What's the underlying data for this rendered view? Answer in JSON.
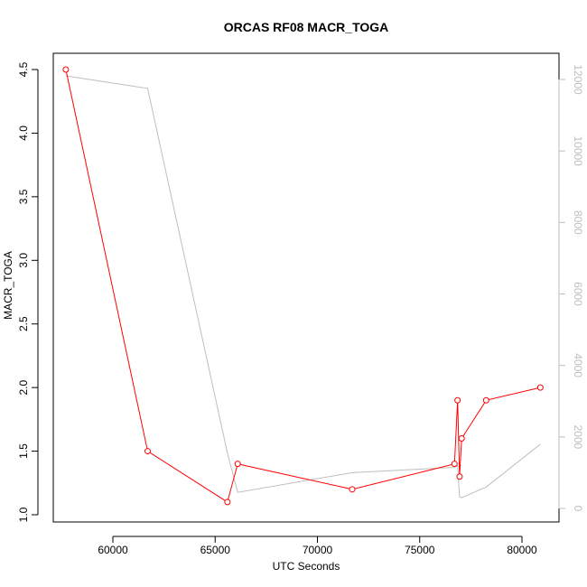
{
  "chart_data": {
    "type": "line",
    "title": "ORCAS RF08 MACR_TOGA",
    "xlabel": "UTC Seconds",
    "ylabel": "MACR_TOGA",
    "xlim": [
      56800,
      82000
    ],
    "ylim": [
      1.0,
      4.5
    ],
    "xticks": [
      60000,
      65000,
      70000,
      75000,
      80000
    ],
    "yticks": [
      "1.0",
      "1.5",
      "2.0",
      "2.5",
      "3.0",
      "3.5",
      "4.0",
      "4.5"
    ],
    "y2lim": [
      0,
      12000
    ],
    "y2ticks": [
      0,
      2000,
      4000,
      6000,
      8000,
      10000,
      12000
    ],
    "colors": {
      "primary": "#ff0000",
      "secondary": "#bebebe",
      "axis": "#000000"
    },
    "series": [
      {
        "axis": "left",
        "style": "line-with-open-circles",
        "x": [
          57700,
          61700,
          65600,
          66100,
          71700,
          76700,
          76850,
          76950,
          77050,
          78250,
          80900
        ],
        "y": [
          4.5,
          1.5,
          1.1,
          1.4,
          1.2,
          1.4,
          1.9,
          1.3,
          1.6,
          1.9,
          2.0
        ]
      },
      {
        "axis": "right",
        "style": "line",
        "x": [
          57700,
          61700,
          65600,
          66100,
          71700,
          76700,
          76850,
          76950,
          77050,
          78250,
          80900
        ],
        "y": [
          12100,
          11750,
          1550,
          450,
          1000,
          1150,
          1200,
          320,
          300,
          600,
          1800
        ]
      }
    ]
  }
}
